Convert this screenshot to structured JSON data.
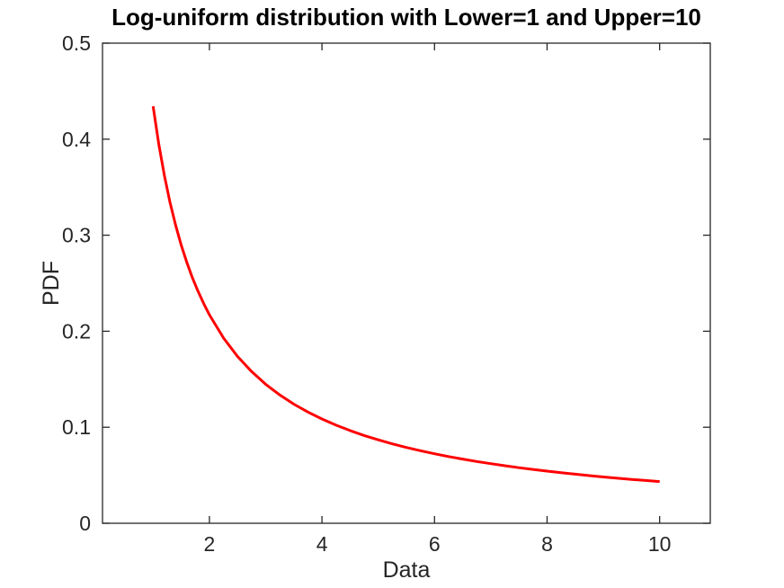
{
  "figure": {
    "background": "#ffffff"
  },
  "chart_data": {
    "type": "line",
    "title": "Log-uniform distribution with Lower=1 and Upper=10",
    "xlabel": "Data",
    "ylabel": "PDF",
    "xlim": [
      0.1,
      10.9
    ],
    "ylim": [
      0,
      0.5
    ],
    "grid": false,
    "box": true,
    "tick_direction": "in",
    "xticks": {
      "values": [
        2,
        4,
        6,
        8,
        10
      ],
      "labels": [
        "2",
        "4",
        "6",
        "8",
        "10"
      ]
    },
    "yticks": {
      "values": [
        0,
        0.1,
        0.2,
        0.3,
        0.4,
        0.5
      ],
      "labels": [
        "0",
        "0.1",
        "0.2",
        "0.3",
        "0.4",
        "0.5"
      ]
    },
    "colors": {
      "line": "#ff0000",
      "axis": "#262626",
      "tick_label": "#262626",
      "title": "#000000",
      "background": "#ffffff"
    },
    "series": [
      {
        "name": "log-uniform-pdf",
        "line_style": "solid",
        "line_width": 3,
        "x": [
          1,
          1.1,
          1.2,
          1.3,
          1.4,
          1.5,
          1.6,
          1.7,
          1.8,
          1.9,
          2,
          2.25,
          2.5,
          2.75,
          3,
          3.25,
          3.5,
          3.75,
          4,
          4.25,
          4.5,
          4.75,
          5,
          5.25,
          5.5,
          5.75,
          6,
          6.25,
          6.5,
          6.75,
          7,
          7.25,
          7.5,
          7.75,
          8,
          8.25,
          8.5,
          8.75,
          9,
          9.25,
          9.5,
          9.75,
          10
        ],
        "y": [
          0.43429,
          0.39481,
          0.36191,
          0.33407,
          0.31021,
          0.28953,
          0.27143,
          0.25547,
          0.24127,
          0.22858,
          0.21715,
          0.19302,
          0.17372,
          0.15793,
          0.14476,
          0.13363,
          0.12408,
          0.11581,
          0.10857,
          0.10219,
          0.09651,
          0.09143,
          0.08686,
          0.08272,
          0.07896,
          0.07553,
          0.07238,
          0.06949,
          0.06681,
          0.06434,
          0.06204,
          0.0599,
          0.05791,
          0.05604,
          0.05429,
          0.05264,
          0.05109,
          0.04963,
          0.04825,
          0.04695,
          0.04571,
          0.04454,
          0.04343
        ]
      }
    ]
  }
}
